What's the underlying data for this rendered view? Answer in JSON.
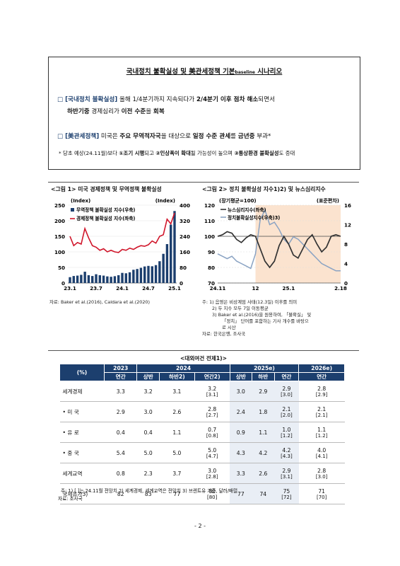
{
  "box": {
    "title_a": "국내정치 불확실성 및 美관세정책 기본",
    "title_sub": "baseline",
    "title_b": " 시나리오",
    "b1_line1_head": "□ [국내정치 불확실성]",
    "b1_line1_mid": " 올해 1/4분기까지 지속되다가 ",
    "b1_line1_bold": "2/4분기 이후 점차 해소",
    "b1_line1_tail": "되면서",
    "b1_line2_bold1": "하반기중",
    "b1_line2_mid": " 경제심리가 ",
    "b1_line2_bold2": "이전 수준",
    "b1_line2_mid2": "을 ",
    "b1_line2_bold3": "회복",
    "b2_head": "□ [美관세정책]",
    "b2_mid": " 미국은 ",
    "b2_bold1": "주요 무역적자국",
    "b2_mid2": "을 대상으로 ",
    "b2_bold2": "일정 수준 관세",
    "b2_mid3": "를 ",
    "b2_bold3": "금년중",
    "b2_tail": " 부과*",
    "note_a": "* 당초 예상(24.11월)보다 ",
    "note_b1": "①조기 시행",
    "note_c": "되고 ",
    "note_b2": "②인상폭이 확대",
    "note_d": "될 가능성이 높으며 ",
    "note_b3": "③통상환경 불확실성",
    "note_e": "도 증대"
  },
  "fig1": {
    "caption": "<그림 1> 미국 경제정책 및 무역정책 불확실성",
    "left_unit": "(Index)",
    "right_unit": "(Index)",
    "legend": [
      "무역정책 불확실성 지수(우축)",
      "경제정책 불확실성 지수(좌축)"
    ],
    "source": "자료: Baker et al.(2016), Caldara et al.(2020)"
  },
  "fig2": {
    "caption": "<그림 2> 정치 불확실성 지수1)2) 및 뉴스심리지수",
    "left_unit": "(장기평균=100)",
    "right_unit": "(표준편차)",
    "legend": [
      "뉴스심리지수(좌축)",
      "정치불확실성지수(우축)3)"
    ],
    "notes": [
      "주: 1) 음영은 비상계엄 사태(12.3일) 이후를 의미",
      "2) 두 지수 모두 7일 이동평균",
      "3) Baker et al.(2016)을 원용하여, 「불확실」 및",
      "「정치」 단어를 포함하는 기사 개수를 바탕으",
      "로 시산"
    ],
    "source": "자료: 한국은행, 조사국"
  },
  "chart_data": [
    {
      "type": "bar",
      "title": "<그림 1> 미국 경제정책 및 무역정책 불확실성",
      "x_ticks": [
        "23.1",
        "23.7",
        "24.1",
        "24.7",
        "25.1"
      ],
      "left_axis": {
        "label": "(Index)",
        "ylim": [
          0,
          250
        ],
        "ticks": [
          0,
          50,
          100,
          150,
          200,
          250
        ]
      },
      "right_axis": {
        "label": "(Index)",
        "ylim": [
          0,
          400
        ],
        "ticks": [
          0,
          80,
          160,
          240,
          320,
          400
        ]
      },
      "series": [
        {
          "name": "무역정책 불확실성 지수(우축)",
          "type": "bar",
          "axis": "right",
          "values": [
            30,
            36,
            38,
            42,
            58,
            40,
            36,
            45,
            40,
            38,
            34,
            32,
            35,
            40,
            52,
            50,
            55,
            68,
            72,
            78,
            85,
            88,
            86,
            92,
            112,
            150,
            200,
            300,
            370
          ]
        },
        {
          "name": "경제정책 불확실성 지수(좌축)",
          "type": "line",
          "axis": "left",
          "values": [
            150,
            120,
            130,
            125,
            175,
            145,
            120,
            115,
            105,
            110,
            100,
            105,
            100,
            98,
            108,
            105,
            112,
            108,
            115,
            120,
            118,
            123,
            135,
            128,
            150,
            155,
            205,
            190,
            225
          ]
        }
      ]
    },
    {
      "type": "line",
      "title": "<그림 2> 정치 불확실성 지수1)2) 및 뉴스심리지수",
      "x_ticks": [
        "24.11",
        "12",
        "25.1",
        "2.18"
      ],
      "left_axis": {
        "label": "(장기평균=100)",
        "ylim": [
          70,
          120
        ],
        "ticks": [
          70,
          80,
          90,
          100,
          110,
          120
        ]
      },
      "right_axis": {
        "label": "(표준편차)",
        "ylim": [
          0,
          16
        ],
        "ticks": [
          0,
          4,
          8,
          12,
          16
        ]
      },
      "series": [
        {
          "name": "뉴스심리지수(좌축)",
          "axis": "left",
          "values": [
            100,
            101,
            103,
            102,
            98,
            96,
            99,
            101,
            100,
            92,
            84,
            80,
            84,
            94,
            100,
            95,
            88,
            86,
            92,
            98,
            101,
            95,
            90,
            93,
            100,
            101,
            100
          ]
        },
        {
          "name": "정치불확실성지수(우축)3)",
          "axis": "right",
          "values": [
            6,
            5.5,
            5,
            5.5,
            4.5,
            4,
            3.5,
            3,
            6,
            13,
            15,
            12,
            12.5,
            11,
            9,
            8,
            9.5,
            9,
            8,
            7,
            6,
            5,
            4,
            3.5,
            3,
            2.5,
            2.5
          ]
        }
      ]
    },
    {
      "type": "table",
      "title": "<대외여건 전제1)>"
    }
  ],
  "table": {
    "caption": "<대외여건 전제1)>",
    "h_unit": "(%)",
    "h_2023": "2023",
    "h_2024": "2024",
    "h_2025": "2025e)",
    "h_2026": "2026e)",
    "sub": [
      "연간",
      "상반",
      "하반2)",
      "연간2)",
      "상반",
      "하반",
      "연간",
      "연간"
    ],
    "rows": [
      {
        "label": "세계경제",
        "cells": [
          "3.3",
          "3.2",
          "3.1",
          "3.2",
          "3.0",
          "2.9",
          "2.9",
          "2.8"
        ],
        "prev": [
          "",
          "",
          "",
          "[3.1]",
          "",
          "",
          "[3.0]",
          "[2.9]"
        ]
      },
      {
        "label": "• 미 국",
        "cells": [
          "2.9",
          "3.0",
          "2.6",
          "2.8",
          "2.4",
          "1.8",
          "2.1",
          "2.1"
        ],
        "prev": [
          "",
          "",
          "",
          "[2.7]",
          "",
          "",
          "[2.0]",
          "[2.1]"
        ]
      },
      {
        "label": "• 유 로",
        "cells": [
          "0.4",
          "0.4",
          "1.1",
          "0.7",
          "0.9",
          "1.1",
          "1.0",
          "1.1"
        ],
        "prev": [
          "",
          "",
          "",
          "[0.8]",
          "",
          "",
          "[1.2]",
          "[1.2]"
        ]
      },
      {
        "label": "• 중 국",
        "cells": [
          "5.4",
          "5.0",
          "5.0",
          "5.0",
          "4.3",
          "4.2",
          "4.2",
          "4.0"
        ],
        "prev": [
          "",
          "",
          "",
          "[4.7]",
          "",
          "",
          "[4.3]",
          "[4.1]"
        ]
      },
      {
        "label": "세계교역",
        "cells": [
          "0.8",
          "2.3",
          "3.7",
          "3.0",
          "3.3",
          "2.6",
          "2.9",
          "2.8"
        ],
        "prev": [
          "",
          "",
          "",
          "[2.8]",
          "",
          "",
          "[3.1]",
          "[3.0]"
        ]
      },
      {
        "label": "국제유가3)",
        "cells": [
          "82",
          "83",
          "77",
          "80",
          "77",
          "74",
          "75",
          "71"
        ],
        "prev": [
          "",
          "",
          "",
          "[80]",
          "",
          "",
          "[72]",
          "[70]"
        ]
      }
    ],
    "note": "주: 1) [ ]는 24.11월 전망치  2) 세계경제, 세계교역은 전망치 3) 브렌트유 기준, 달러/배럴",
    "source": "자료: 조사국"
  },
  "page_number": "- 2 -",
  "colors": {
    "navy": "#1c3f6e",
    "red": "#d0152a",
    "shade": "#fbe3cf",
    "line_gray": "#7b8a9c",
    "line_dark": "#333333"
  }
}
